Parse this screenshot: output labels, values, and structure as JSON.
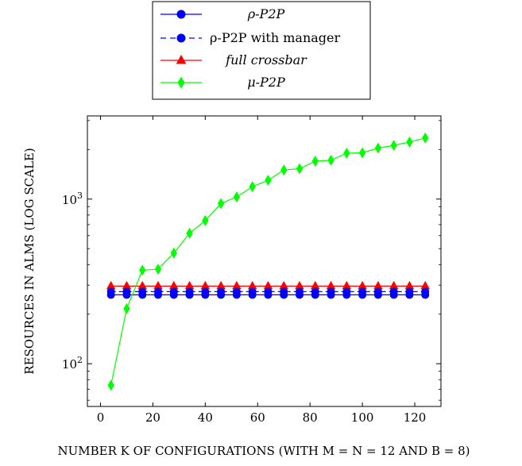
{
  "chart_data": {
    "type": "line",
    "title": "",
    "xlabel": "NUMBER K OF CONFIGURATIONS (WITH M = N = 12 AND B = 8)",
    "ylabel": "RESOURCES IN ALMS (LOG SCALE)",
    "xlim": [
      -5,
      130
    ],
    "ylim": [
      55,
      3200
    ],
    "y_scale": "log",
    "x_ticks": [
      0,
      20,
      40,
      60,
      80,
      100,
      120
    ],
    "y_ticks": [
      100,
      1000
    ],
    "y_tick_labels": [
      "10^2",
      "10^3"
    ],
    "grid": false,
    "legend_position": "top-center (above plot)",
    "x": [
      4,
      10,
      16,
      22,
      28,
      34,
      40,
      46,
      52,
      58,
      64,
      70,
      76,
      82,
      88,
      94,
      100,
      106,
      112,
      118,
      124
    ],
    "series": [
      {
        "name": "ρ-P2P",
        "color": "#0000ff",
        "marker": "circle",
        "line": "solid",
        "values": [
          262,
          262,
          262,
          262,
          262,
          262,
          262,
          262,
          262,
          262,
          262,
          262,
          262,
          262,
          262,
          262,
          262,
          262,
          262,
          262,
          262
        ]
      },
      {
        "name": "ρ-P2P with manager",
        "color": "#0000ff",
        "marker": "circle",
        "line": "dashed",
        "values": [
          274,
          274,
          274,
          274,
          274,
          274,
          274,
          274,
          274,
          274,
          274,
          274,
          274,
          274,
          274,
          274,
          274,
          274,
          274,
          274,
          274
        ]
      },
      {
        "name": "full crossbar",
        "color": "#ff0000",
        "marker": "triangle",
        "line": "solid",
        "values": [
          296,
          296,
          296,
          296,
          296,
          296,
          296,
          296,
          296,
          296,
          296,
          296,
          296,
          296,
          296,
          296,
          296,
          296,
          296,
          296,
          296
        ]
      },
      {
        "name": "μ-P2P",
        "color": "#00ff00",
        "marker": "diamond",
        "line": "solid",
        "values": [
          74,
          216,
          370,
          375,
          470,
          620,
          740,
          940,
          1030,
          1190,
          1300,
          1500,
          1530,
          1700,
          1720,
          1900,
          1910,
          2040,
          2120,
          2220,
          2350
        ]
      }
    ]
  }
}
